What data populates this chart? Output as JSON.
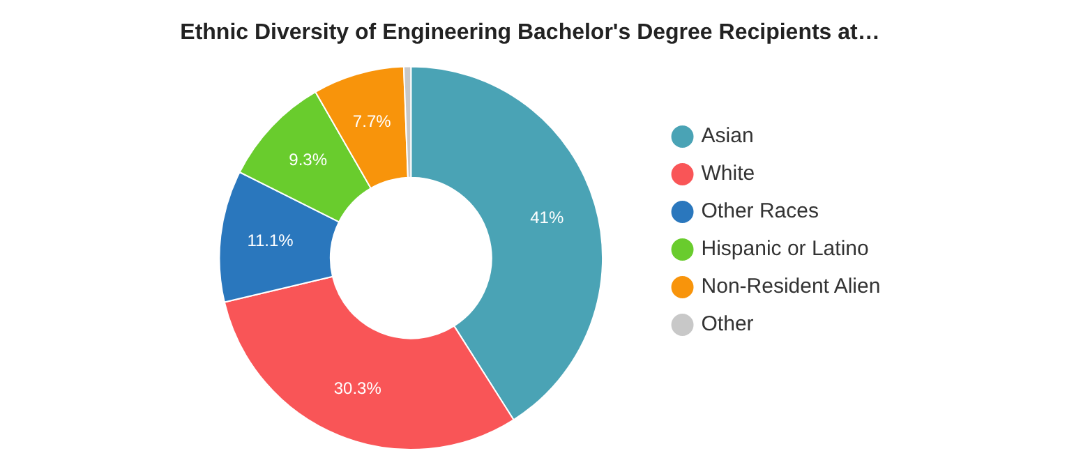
{
  "chart_data": {
    "type": "donut",
    "title": "Ethnic Diversity of Engineering Bachelor's Degree Recipients at…",
    "categories": [
      "Asian",
      "White",
      "Other Races",
      "Hispanic or Latino",
      "Non-Resident Alien",
      "Other"
    ],
    "values": [
      41,
      30.3,
      11.1,
      9.3,
      7.7,
      0.6
    ],
    "colors": [
      "#4aa3b5",
      "#f95557",
      "#2a77bd",
      "#69cc2d",
      "#f8940b",
      "#c8c8c8"
    ],
    "value_labels": [
      "41%",
      "30.3%",
      "11.1%",
      "9.3%",
      "7.7%",
      null
    ],
    "legend": "right"
  }
}
